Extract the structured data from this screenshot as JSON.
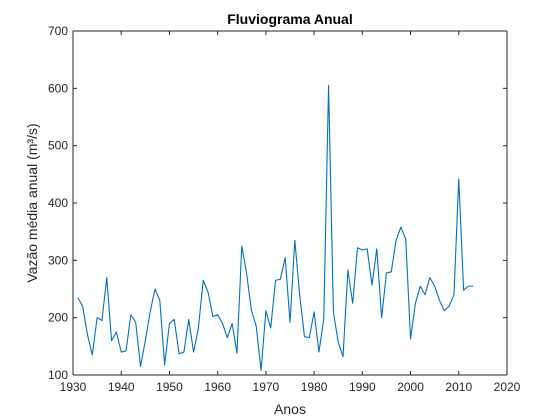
{
  "chart_data": {
    "type": "line",
    "title": "Fluviograma Anual",
    "xlabel": "Anos",
    "ylabel": "Vazão média anual (m³/s)",
    "xlim": [
      1930,
      2020
    ],
    "ylim": [
      100,
      700
    ],
    "xticks": [
      1930,
      1940,
      1950,
      1960,
      1970,
      1980,
      1990,
      2000,
      2010,
      2020
    ],
    "yticks": [
      100,
      200,
      300,
      400,
      500,
      600,
      700
    ],
    "grid": false,
    "legend": "none",
    "colors": {
      "line": "#0072BD",
      "axis": "#262626"
    },
    "series": [
      {
        "name": "",
        "x": [
          1931,
          1932,
          1933,
          1934,
          1935,
          1936,
          1937,
          1938,
          1939,
          1940,
          1941,
          1942,
          1943,
          1944,
          1945,
          1946,
          1947,
          1948,
          1949,
          1950,
          1951,
          1952,
          1953,
          1954,
          1955,
          1956,
          1957,
          1958,
          1959,
          1960,
          1961,
          1962,
          1963,
          1964,
          1965,
          1966,
          1967,
          1968,
          1969,
          1970,
          1971,
          1972,
          1973,
          1974,
          1975,
          1976,
          1977,
          1978,
          1979,
          1980,
          1981,
          1982,
          1983,
          1984,
          1985,
          1986,
          1987,
          1988,
          1989,
          1990,
          1991,
          1992,
          1993,
          1994,
          1995,
          1996,
          1997,
          1998,
          1999,
          2000,
          2001,
          2002,
          2003,
          2004,
          2005,
          2006,
          2007,
          2008,
          2009,
          2010,
          2011,
          2012,
          2013
        ],
        "values": [
          235,
          220,
          170,
          135,
          200,
          195,
          270,
          160,
          175,
          140,
          142,
          205,
          192,
          115,
          160,
          210,
          250,
          230,
          118,
          190,
          197,
          137,
          140,
          197,
          140,
          182,
          265,
          245,
          202,
          205,
          190,
          165,
          190,
          138,
          325,
          277,
          213,
          185,
          108,
          212,
          182,
          265,
          267,
          305,
          192,
          335,
          240,
          167,
          165,
          210,
          140,
          198,
          605,
          210,
          157,
          132,
          283,
          225,
          322,
          318,
          320,
          257,
          320,
          200,
          278,
          280,
          335,
          358,
          337,
          163,
          225,
          255,
          240,
          270,
          255,
          230,
          212,
          220,
          240,
          442,
          248,
          255,
          255
        ]
      }
    ]
  }
}
